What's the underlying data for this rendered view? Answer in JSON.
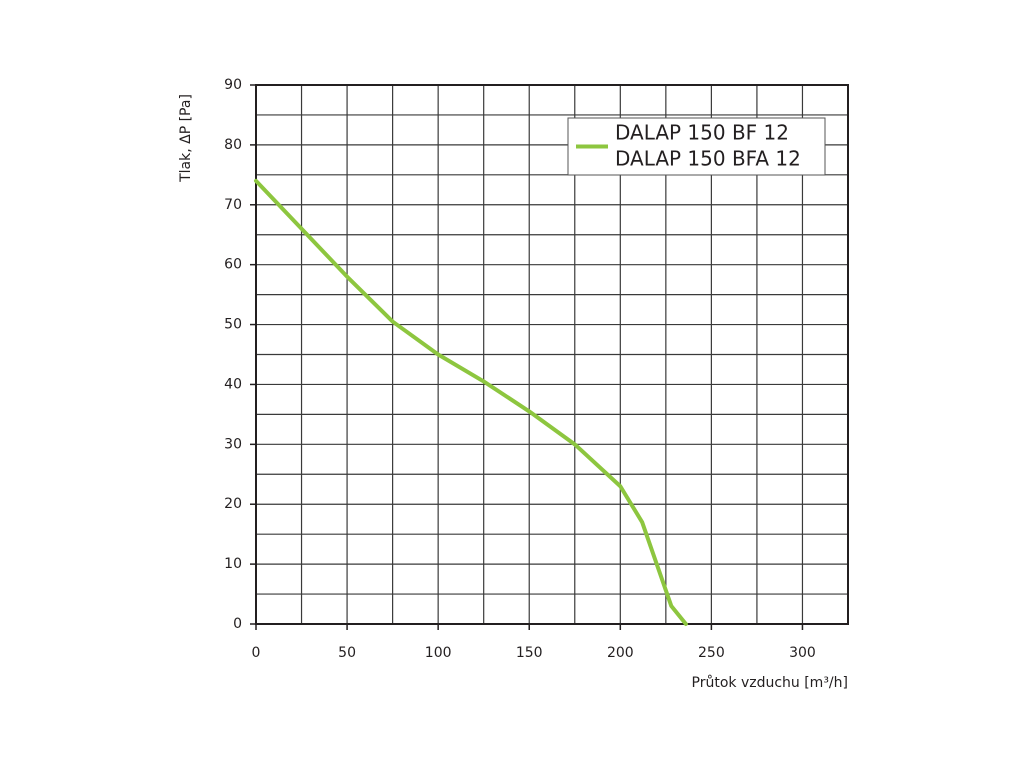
{
  "chart_data": {
    "type": "line",
    "x_label": "Průtok vzduchu [m³/h]",
    "y_label": "Tlak, ΔP [Pa]",
    "series": [
      {
        "name": [
          "DALAP 150 BF 12",
          "DALAP 150 BFA 12"
        ],
        "color": "#8dc63f",
        "x": [
          0,
          25,
          50,
          75,
          100,
          125,
          150,
          175,
          200,
          212,
          220,
          228,
          236
        ],
        "values": [
          74,
          66,
          58,
          50.5,
          45,
          40.5,
          35.5,
          30,
          23,
          17,
          10,
          3,
          0
        ]
      }
    ],
    "xlim": [
      0,
      325
    ],
    "xticks": [
      0,
      50,
      100,
      150,
      200,
      250,
      300
    ],
    "ylim": [
      0,
      90
    ],
    "yticks": [
      0,
      10,
      20,
      30,
      40,
      50,
      60,
      70,
      80,
      90
    ],
    "minor_grid_step_x": 25,
    "minor_grid_step_y": 5,
    "grid": true,
    "legend": "upper right"
  }
}
